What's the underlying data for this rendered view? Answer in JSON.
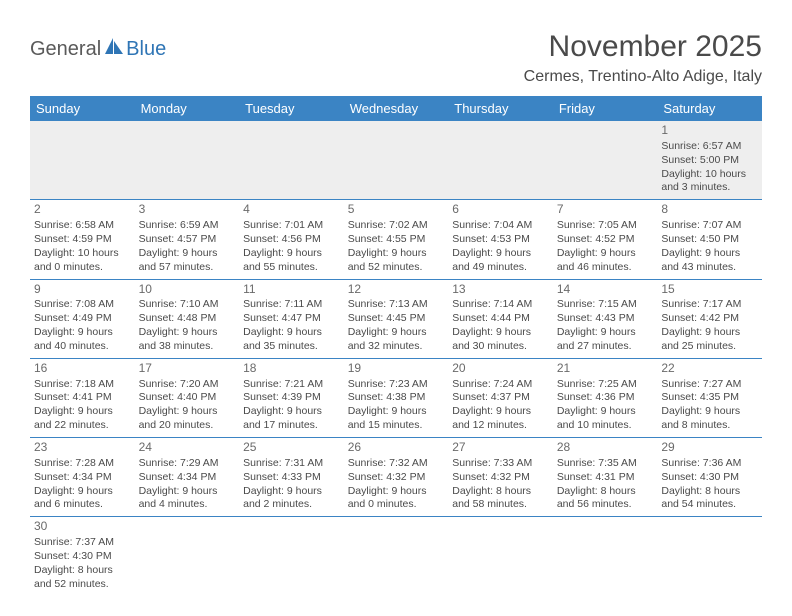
{
  "logo": {
    "general": "General",
    "blue": "Blue"
  },
  "title": "November 2025",
  "location": "Cermes, Trentino-Alto Adige, Italy",
  "colors": {
    "header_bg": "#3b84c4",
    "header_text": "#ffffff",
    "border": "#3b84c4",
    "text": "#4a4a4a",
    "daynum": "#6a6a6a",
    "empty_bg": "#eeeeee",
    "page_bg": "#ffffff",
    "logo_blue": "#2f75b5"
  },
  "typography": {
    "title_fontsize": 30,
    "location_fontsize": 16,
    "th_fontsize": 13,
    "cell_fontsize": 10.5,
    "daynum_fontsize": 12,
    "logo_fontsize": 20
  },
  "day_headers": [
    "Sunday",
    "Monday",
    "Tuesday",
    "Wednesday",
    "Thursday",
    "Friday",
    "Saturday"
  ],
  "weeks": [
    [
      null,
      null,
      null,
      null,
      null,
      null,
      {
        "n": "1",
        "sr": "Sunrise: 6:57 AM",
        "ss": "Sunset: 5:00 PM",
        "d1": "Daylight: 10 hours",
        "d2": "and 3 minutes."
      }
    ],
    [
      {
        "n": "2",
        "sr": "Sunrise: 6:58 AM",
        "ss": "Sunset: 4:59 PM",
        "d1": "Daylight: 10 hours",
        "d2": "and 0 minutes."
      },
      {
        "n": "3",
        "sr": "Sunrise: 6:59 AM",
        "ss": "Sunset: 4:57 PM",
        "d1": "Daylight: 9 hours",
        "d2": "and 57 minutes."
      },
      {
        "n": "4",
        "sr": "Sunrise: 7:01 AM",
        "ss": "Sunset: 4:56 PM",
        "d1": "Daylight: 9 hours",
        "d2": "and 55 minutes."
      },
      {
        "n": "5",
        "sr": "Sunrise: 7:02 AM",
        "ss": "Sunset: 4:55 PM",
        "d1": "Daylight: 9 hours",
        "d2": "and 52 minutes."
      },
      {
        "n": "6",
        "sr": "Sunrise: 7:04 AM",
        "ss": "Sunset: 4:53 PM",
        "d1": "Daylight: 9 hours",
        "d2": "and 49 minutes."
      },
      {
        "n": "7",
        "sr": "Sunrise: 7:05 AM",
        "ss": "Sunset: 4:52 PM",
        "d1": "Daylight: 9 hours",
        "d2": "and 46 minutes."
      },
      {
        "n": "8",
        "sr": "Sunrise: 7:07 AM",
        "ss": "Sunset: 4:50 PM",
        "d1": "Daylight: 9 hours",
        "d2": "and 43 minutes."
      }
    ],
    [
      {
        "n": "9",
        "sr": "Sunrise: 7:08 AM",
        "ss": "Sunset: 4:49 PM",
        "d1": "Daylight: 9 hours",
        "d2": "and 40 minutes."
      },
      {
        "n": "10",
        "sr": "Sunrise: 7:10 AM",
        "ss": "Sunset: 4:48 PM",
        "d1": "Daylight: 9 hours",
        "d2": "and 38 minutes."
      },
      {
        "n": "11",
        "sr": "Sunrise: 7:11 AM",
        "ss": "Sunset: 4:47 PM",
        "d1": "Daylight: 9 hours",
        "d2": "and 35 minutes."
      },
      {
        "n": "12",
        "sr": "Sunrise: 7:13 AM",
        "ss": "Sunset: 4:45 PM",
        "d1": "Daylight: 9 hours",
        "d2": "and 32 minutes."
      },
      {
        "n": "13",
        "sr": "Sunrise: 7:14 AM",
        "ss": "Sunset: 4:44 PM",
        "d1": "Daylight: 9 hours",
        "d2": "and 30 minutes."
      },
      {
        "n": "14",
        "sr": "Sunrise: 7:15 AM",
        "ss": "Sunset: 4:43 PM",
        "d1": "Daylight: 9 hours",
        "d2": "and 27 minutes."
      },
      {
        "n": "15",
        "sr": "Sunrise: 7:17 AM",
        "ss": "Sunset: 4:42 PM",
        "d1": "Daylight: 9 hours",
        "d2": "and 25 minutes."
      }
    ],
    [
      {
        "n": "16",
        "sr": "Sunrise: 7:18 AM",
        "ss": "Sunset: 4:41 PM",
        "d1": "Daylight: 9 hours",
        "d2": "and 22 minutes."
      },
      {
        "n": "17",
        "sr": "Sunrise: 7:20 AM",
        "ss": "Sunset: 4:40 PM",
        "d1": "Daylight: 9 hours",
        "d2": "and 20 minutes."
      },
      {
        "n": "18",
        "sr": "Sunrise: 7:21 AM",
        "ss": "Sunset: 4:39 PM",
        "d1": "Daylight: 9 hours",
        "d2": "and 17 minutes."
      },
      {
        "n": "19",
        "sr": "Sunrise: 7:23 AM",
        "ss": "Sunset: 4:38 PM",
        "d1": "Daylight: 9 hours",
        "d2": "and 15 minutes."
      },
      {
        "n": "20",
        "sr": "Sunrise: 7:24 AM",
        "ss": "Sunset: 4:37 PM",
        "d1": "Daylight: 9 hours",
        "d2": "and 12 minutes."
      },
      {
        "n": "21",
        "sr": "Sunrise: 7:25 AM",
        "ss": "Sunset: 4:36 PM",
        "d1": "Daylight: 9 hours",
        "d2": "and 10 minutes."
      },
      {
        "n": "22",
        "sr": "Sunrise: 7:27 AM",
        "ss": "Sunset: 4:35 PM",
        "d1": "Daylight: 9 hours",
        "d2": "and 8 minutes."
      }
    ],
    [
      {
        "n": "23",
        "sr": "Sunrise: 7:28 AM",
        "ss": "Sunset: 4:34 PM",
        "d1": "Daylight: 9 hours",
        "d2": "and 6 minutes."
      },
      {
        "n": "24",
        "sr": "Sunrise: 7:29 AM",
        "ss": "Sunset: 4:34 PM",
        "d1": "Daylight: 9 hours",
        "d2": "and 4 minutes."
      },
      {
        "n": "25",
        "sr": "Sunrise: 7:31 AM",
        "ss": "Sunset: 4:33 PM",
        "d1": "Daylight: 9 hours",
        "d2": "and 2 minutes."
      },
      {
        "n": "26",
        "sr": "Sunrise: 7:32 AM",
        "ss": "Sunset: 4:32 PM",
        "d1": "Daylight: 9 hours",
        "d2": "and 0 minutes."
      },
      {
        "n": "27",
        "sr": "Sunrise: 7:33 AM",
        "ss": "Sunset: 4:32 PM",
        "d1": "Daylight: 8 hours",
        "d2": "and 58 minutes."
      },
      {
        "n": "28",
        "sr": "Sunrise: 7:35 AM",
        "ss": "Sunset: 4:31 PM",
        "d1": "Daylight: 8 hours",
        "d2": "and 56 minutes."
      },
      {
        "n": "29",
        "sr": "Sunrise: 7:36 AM",
        "ss": "Sunset: 4:30 PM",
        "d1": "Daylight: 8 hours",
        "d2": "and 54 minutes."
      }
    ],
    [
      {
        "n": "30",
        "sr": "Sunrise: 7:37 AM",
        "ss": "Sunset: 4:30 PM",
        "d1": "Daylight: 8 hours",
        "d2": "and 52 minutes."
      },
      null,
      null,
      null,
      null,
      null,
      null
    ]
  ]
}
